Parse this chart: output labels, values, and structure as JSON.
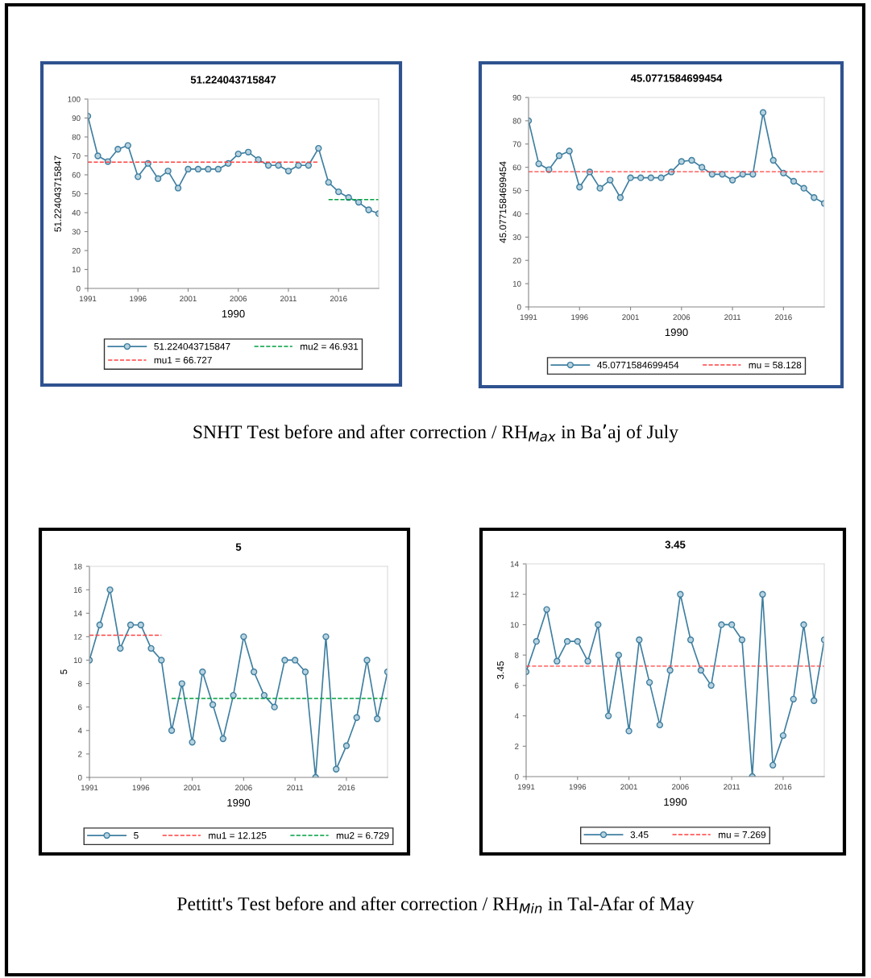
{
  "chart_data": [
    {
      "type": "line",
      "title": "51.224043715847",
      "xlabel": "1990",
      "ylabel": "51.224043715847",
      "legend": "bottom",
      "grid": false,
      "x": [
        1991,
        1992,
        1993,
        1994,
        1995,
        1996,
        1997,
        1998,
        1999,
        2000,
        2001,
        2002,
        2003,
        2004,
        2005,
        2006,
        2007,
        2008,
        2009,
        2010,
        2011,
        2012,
        2013,
        2014,
        2015,
        2016,
        2017,
        2018,
        2019,
        2020
      ],
      "xlim": [
        1991,
        2020
      ],
      "xticks": [
        1991,
        1996,
        2001,
        2006,
        2011,
        2016
      ],
      "ylim": [
        0,
        100
      ],
      "yticks": [
        0,
        10,
        20,
        30,
        40,
        50,
        60,
        70,
        80,
        90,
        100
      ],
      "annotations": [
        "SNHT Test before and after correction / RH$_{Max}$ in Ba’aj of July"
      ],
      "series": [
        {
          "name": "51.224043715847",
          "color": "#3f7fa0",
          "marker": "circle",
          "values": [
            91,
            70,
            67,
            73.5,
            75.5,
            59,
            66,
            58,
            62,
            53,
            63,
            63,
            63,
            63,
            66,
            71,
            72,
            68,
            65,
            65,
            62,
            65,
            65,
            74,
            56,
            51,
            48,
            45.5,
            41.5,
            39.5
          ]
        },
        {
          "name": "mu1 = 66.727",
          "color": "#ff4040",
          "type": "line",
          "line_style": "dashed",
          "x": [
            1991,
            2014
          ],
          "values": [
            66.727,
            66.727
          ]
        },
        {
          "name": "mu2 = 46.931",
          "color": "#00a040",
          "type": "line",
          "line_style": "dashed",
          "x": [
            2015,
            2020
          ],
          "values": [
            46.931,
            46.931
          ]
        }
      ]
    },
    {
      "type": "line",
      "title": "45.0771584699454",
      "xlabel": "1990",
      "ylabel": "45.0771584699454",
      "legend": "bottom",
      "grid": false,
      "x": [
        1991,
        1992,
        1993,
        1994,
        1995,
        1996,
        1997,
        1998,
        1999,
        2000,
        2001,
        2002,
        2003,
        2004,
        2005,
        2006,
        2007,
        2008,
        2009,
        2010,
        2011,
        2012,
        2013,
        2014,
        2015,
        2016,
        2017,
        2018,
        2019,
        2020
      ],
      "xlim": [
        1991,
        2020
      ],
      "xticks": [
        1991,
        1996,
        2001,
        2006,
        2011,
        2016
      ],
      "ylim": [
        0,
        90
      ],
      "yticks": [
        0,
        10,
        20,
        30,
        40,
        50,
        60,
        70,
        80,
        90
      ],
      "series": [
        {
          "name": "45.0771584699454",
          "color": "#3f7fa0",
          "marker": "circle",
          "values": [
            80,
            61.5,
            59,
            65,
            67,
            51.5,
            58,
            51,
            54.5,
            47,
            55.5,
            55.5,
            55.5,
            55.5,
            58,
            62.5,
            63,
            60,
            57,
            57,
            54.5,
            57,
            57,
            83.5,
            63,
            57.5,
            54,
            51,
            47,
            44.5
          ]
        },
        {
          "name": "mu = 58.128",
          "color": "#ff4040",
          "type": "line",
          "line_style": "dashed",
          "x": [
            1991,
            2020
          ],
          "values": [
            58.128,
            58.128
          ]
        }
      ]
    },
    {
      "type": "line",
      "title": "5",
      "xlabel": "1990",
      "ylabel": "5",
      "legend": "bottom",
      "grid": false,
      "x": [
        1991,
        1992,
        1993,
        1994,
        1995,
        1996,
        1997,
        1998,
        1999,
        2000,
        2001,
        2002,
        2003,
        2004,
        2005,
        2006,
        2007,
        2008,
        2009,
        2010,
        2011,
        2012,
        2013,
        2014,
        2015,
        2016,
        2017,
        2018,
        2019,
        2020
      ],
      "xlim": [
        1991,
        2020
      ],
      "xticks": [
        1991,
        1996,
        2001,
        2006,
        2011,
        2016
      ],
      "ylim": [
        0,
        18
      ],
      "yticks": [
        0,
        2,
        4,
        6,
        8,
        10,
        12,
        14,
        16,
        18
      ],
      "annotations": [
        "Pettitt's Test before and after correction / RH$_{Min}$ in Tal-Afar of May"
      ],
      "series": [
        {
          "name": "5",
          "color": "#3f7fa0",
          "marker": "circle",
          "values": [
            10,
            13,
            16,
            11,
            13,
            13,
            11,
            10,
            4,
            8,
            3,
            9,
            6.2,
            3.3,
            7,
            12,
            9,
            7,
            6,
            10,
            10,
            9,
            0,
            12,
            0.7,
            2.7,
            5.1,
            10,
            5,
            9
          ]
        },
        {
          "name": "mu1 = 12.125",
          "color": "#ff4040",
          "type": "line",
          "line_style": "dashed",
          "x": [
            1991,
            1998
          ],
          "values": [
            12.125,
            12.125
          ]
        },
        {
          "name": "mu2 = 6.729",
          "color": "#00a040",
          "type": "line",
          "line_style": "dashed",
          "x": [
            1999,
            2020
          ],
          "values": [
            6.729,
            6.729
          ]
        }
      ]
    },
    {
      "type": "line",
      "title": "3.45",
      "xlabel": "1990",
      "ylabel": "3.45",
      "legend": "bottom",
      "grid": false,
      "x": [
        1991,
        1992,
        1993,
        1994,
        1995,
        1996,
        1997,
        1998,
        1999,
        2000,
        2001,
        2002,
        2003,
        2004,
        2005,
        2006,
        2007,
        2008,
        2009,
        2010,
        2011,
        2012,
        2013,
        2014,
        2015,
        2016,
        2017,
        2018,
        2019,
        2020
      ],
      "xlim": [
        1991,
        2020
      ],
      "xticks": [
        1991,
        1996,
        2001,
        2006,
        2011,
        2016
      ],
      "ylim": [
        0,
        14
      ],
      "yticks": [
        0,
        2,
        4,
        6,
        8,
        10,
        12,
        14
      ],
      "series": [
        {
          "name": "3.45",
          "color": "#3f7fa0",
          "marker": "circle",
          "values": [
            6.9,
            8.9,
            11,
            7.6,
            8.9,
            8.9,
            7.6,
            10,
            4,
            8,
            3,
            9,
            6.2,
            3.4,
            7,
            12,
            9,
            7,
            6,
            10,
            10,
            9,
            0,
            12,
            0.75,
            2.7,
            5.1,
            10,
            5,
            9
          ]
        },
        {
          "name": "mu = 7.269",
          "color": "#ff4040",
          "type": "line",
          "line_style": "dashed",
          "x": [
            1991,
            2020
          ],
          "values": [
            7.269,
            7.269
          ]
        }
      ]
    }
  ]
}
